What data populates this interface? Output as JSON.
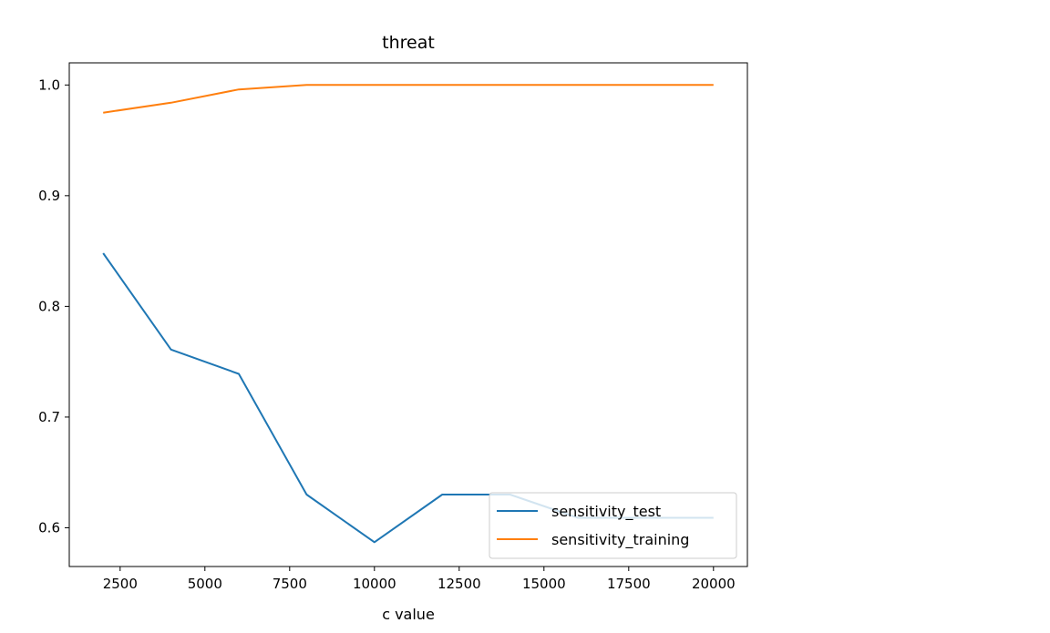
{
  "chart_data": {
    "type": "line",
    "title": "threat",
    "xlabel": "c value",
    "ylabel": "",
    "x": [
      2000,
      4000,
      6000,
      8000,
      10000,
      12000,
      14000,
      16000,
      18000,
      20000
    ],
    "xlim": [
      1000,
      21000
    ],
    "ylim": [
      0.565,
      1.02
    ],
    "xticks": [
      2500,
      5000,
      7500,
      10000,
      12500,
      15000,
      17500,
      20000
    ],
    "yticks": [
      0.6,
      0.7,
      0.8,
      0.9,
      1.0
    ],
    "xtick_labels": [
      "2500",
      "5000",
      "7500",
      "10000",
      "12500",
      "15000",
      "17500",
      "20000"
    ],
    "ytick_labels": [
      "0.6",
      "0.7",
      "0.8",
      "0.9",
      "1.0"
    ],
    "grid": false,
    "legend_position": "lower-right",
    "series": [
      {
        "name": "sensitivity_test",
        "color": "#1f77b4",
        "values": [
          0.848,
          0.761,
          0.739,
          0.63,
          0.587,
          0.63,
          0.63,
          0.609,
          0.609,
          0.609
        ]
      },
      {
        "name": "sensitivity_training",
        "color": "#ff7f0e",
        "values": [
          0.975,
          0.984,
          0.996,
          1.0,
          1.0,
          1.0,
          1.0,
          1.0,
          1.0,
          1.0
        ]
      }
    ]
  }
}
